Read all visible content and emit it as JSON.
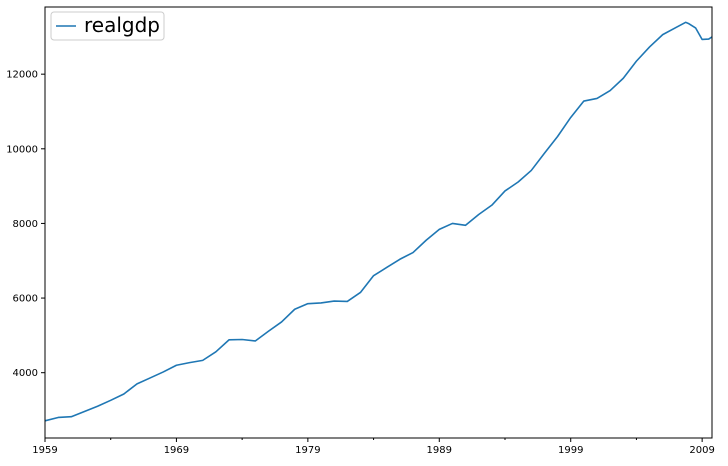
{
  "chart_data": {
    "type": "line",
    "title": "",
    "xlabel": "",
    "ylabel": "",
    "xlim": [
      1959.0,
      2009.75
    ],
    "ylim": [
      2250,
      13800
    ],
    "x_ticks": [
      1959,
      1969,
      1979,
      1989,
      1999,
      2009
    ],
    "x_tick_labels": [
      "1959",
      "1969",
      "1979",
      "1989",
      "1999",
      "2009"
    ],
    "y_ticks": [
      4000,
      6000,
      8000,
      10000,
      12000
    ],
    "y_tick_labels": [
      "4000",
      "6000",
      "8000",
      "10000",
      "12000"
    ],
    "grid": false,
    "legend_position": "upper-left",
    "series": [
      {
        "name": "realgdp",
        "color": "#1f77b4",
        "points": [
          [
            1959.0,
            2710
          ],
          [
            1960.0,
            2800
          ],
          [
            1961.0,
            2820
          ],
          [
            1962.0,
            2960
          ],
          [
            1963.0,
            3100
          ],
          [
            1964.0,
            3260
          ],
          [
            1965.0,
            3430
          ],
          [
            1966.0,
            3700
          ],
          [
            1967.0,
            3860
          ],
          [
            1968.0,
            4020
          ],
          [
            1969.0,
            4200
          ],
          [
            1970.0,
            4270
          ],
          [
            1971.0,
            4330
          ],
          [
            1972.0,
            4560
          ],
          [
            1973.0,
            4880
          ],
          [
            1974.0,
            4890
          ],
          [
            1975.0,
            4850
          ],
          [
            1976.0,
            5110
          ],
          [
            1977.0,
            5360
          ],
          [
            1978.0,
            5700
          ],
          [
            1979.0,
            5850
          ],
          [
            1980.0,
            5870
          ],
          [
            1981.0,
            5920
          ],
          [
            1982.0,
            5910
          ],
          [
            1983.0,
            6150
          ],
          [
            1984.0,
            6600
          ],
          [
            1985.0,
            6820
          ],
          [
            1986.0,
            7040
          ],
          [
            1987.0,
            7220
          ],
          [
            1988.0,
            7550
          ],
          [
            1989.0,
            7840
          ],
          [
            1990.0,
            8000
          ],
          [
            1991.0,
            7950
          ],
          [
            1992.0,
            8240
          ],
          [
            1993.0,
            8490
          ],
          [
            1994.0,
            8870
          ],
          [
            1995.0,
            9110
          ],
          [
            1996.0,
            9420
          ],
          [
            1997.0,
            9880
          ],
          [
            1998.0,
            10330
          ],
          [
            1999.0,
            10840
          ],
          [
            2000.0,
            11280
          ],
          [
            2001.0,
            11350
          ],
          [
            2002.0,
            11560
          ],
          [
            2003.0,
            11890
          ],
          [
            2004.0,
            12350
          ],
          [
            2005.0,
            12730
          ],
          [
            2006.0,
            13060
          ],
          [
            2007.0,
            13250
          ],
          [
            2007.75,
            13390
          ],
          [
            2008.0,
            13350
          ],
          [
            2008.5,
            13240
          ],
          [
            2009.0,
            12930
          ],
          [
            2009.5,
            12940
          ],
          [
            2009.75,
            13000
          ]
        ]
      }
    ]
  }
}
